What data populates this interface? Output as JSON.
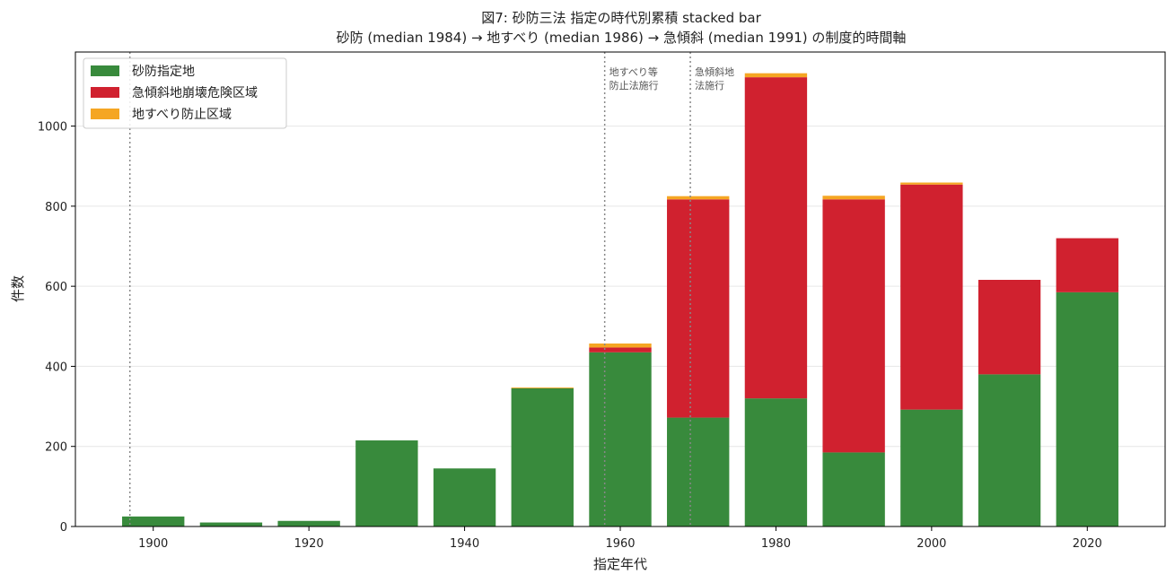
{
  "chart_data": {
    "type": "bar",
    "stacked": true,
    "title": "図7: 砂防三法 指定の時代別累積 stacked bar",
    "subtitle": "砂防 (median 1984) → 地すべり (median 1986) → 急傾斜 (median 1991) の制度的時間軸",
    "xlabel": "指定年代",
    "ylabel": "件数",
    "xlim": [
      1890,
      2030
    ],
    "ylim": [
      0,
      1185
    ],
    "xticks": [
      1900,
      1920,
      1940,
      1960,
      1980,
      2000,
      2020
    ],
    "yticks": [
      0,
      200,
      400,
      600,
      800,
      1000
    ],
    "grid": "horizontal",
    "legend_position": "top-left",
    "x": [
      1900,
      1910,
      1920,
      1930,
      1940,
      1950,
      1960,
      1970,
      1980,
      1990,
      2000,
      2010,
      2020
    ],
    "series": [
      {
        "name": "砂防指定地",
        "color": "#388a3c",
        "values": [
          25,
          10,
          14,
          215,
          145,
          345,
          435,
          272,
          320,
          185,
          292,
          380,
          585
        ]
      },
      {
        "name": "急傾斜地崩壊危険区域",
        "color": "#d0212f",
        "values": [
          0,
          0,
          0,
          0,
          0,
          0,
          12,
          545,
          802,
          632,
          562,
          236,
          135
        ]
      },
      {
        "name": "地すべり防止区域",
        "color": "#f5a623",
        "values": [
          0,
          0,
          0,
          0,
          0,
          2,
          10,
          8,
          10,
          9,
          5,
          0,
          0
        ]
      }
    ],
    "vlines": [
      {
        "x": 1897,
        "label": ""
      },
      {
        "x": 1958,
        "label": "地すべり等防止法施行",
        "label_lines": [
          "地すべり等",
          "防止法施行"
        ]
      },
      {
        "x": 1969,
        "label": "急傾斜地法施行",
        "label_lines": [
          "急傾斜地",
          "法施行"
        ]
      }
    ]
  }
}
